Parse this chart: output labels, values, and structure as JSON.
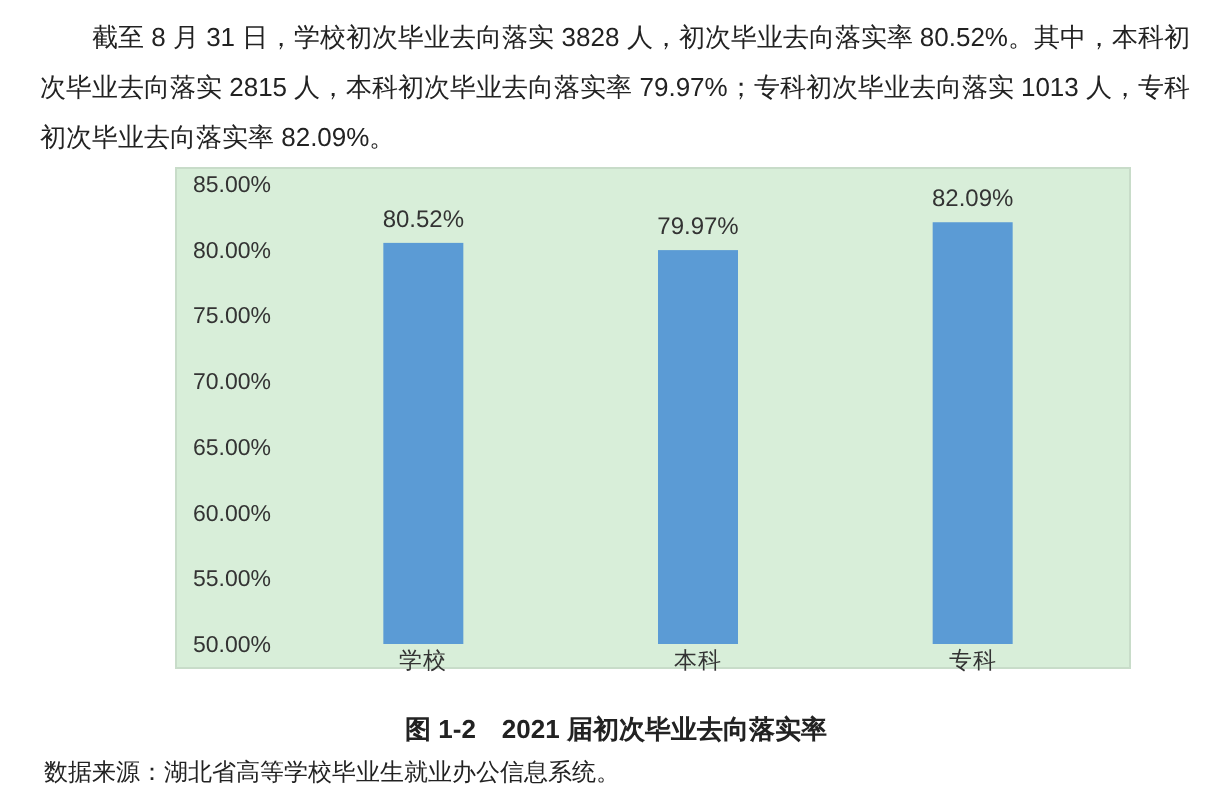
{
  "chart_data": {
    "type": "bar",
    "title": "图 1-2　2021 届初次毕业去向落实率",
    "subtitle": "截至 8 月 31 日，学校初次毕业去向落实 3828 人，初次毕业去向落实率 80.52%。其中，本科初次毕业去向落实 2815 人，本科初次毕业去向落实率 79.97%；专科初次毕业去向落实 1013 人，专科初次毕业去向落实率 82.09%。",
    "annotations": [
      "数据来源：湖北省高等学校毕业生就业办公信息系统。"
    ],
    "categories": [
      "学校",
      "本科",
      "专科"
    ],
    "values": [
      80.52,
      79.97,
      82.09
    ],
    "value_labels": [
      "80.52%",
      "79.97%",
      "82.09%"
    ],
    "color": "#5b9bd5",
    "ylim": [
      50,
      85
    ],
    "yticks": [
      {
        "value": 50,
        "label": "50.00%"
      },
      {
        "value": 55,
        "label": "55.00%"
      },
      {
        "value": 60,
        "label": "60.00%"
      },
      {
        "value": 65,
        "label": "65.00%"
      },
      {
        "value": 70,
        "label": "70.00%"
      },
      {
        "value": 75,
        "label": "75.00%"
      },
      {
        "value": 80,
        "label": "80.00%"
      },
      {
        "value": 85,
        "label": "85.00%"
      }
    ],
    "grid": false
  }
}
